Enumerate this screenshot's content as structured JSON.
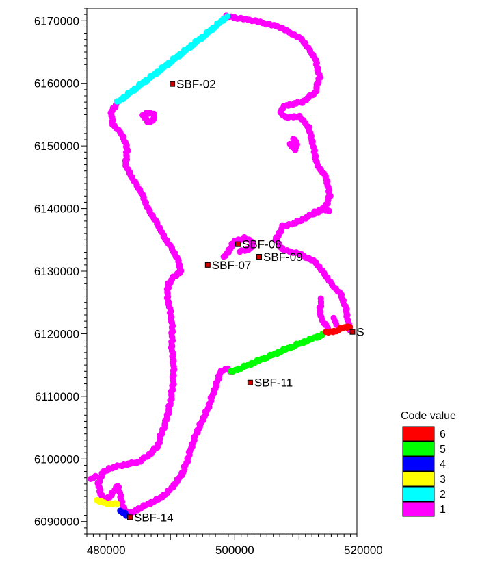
{
  "chart_data": {
    "type": "scatter",
    "xlim": [
      477000,
      519000
    ],
    "ylim": [
      6088000,
      6172000
    ],
    "x_ticks": [
      480000,
      500000,
      520000
    ],
    "x_tick_labels": [
      "480000",
      "500000",
      "520000"
    ],
    "y_ticks": [
      6090000,
      6100000,
      6110000,
      6120000,
      6130000,
      6140000,
      6150000,
      6160000,
      6170000
    ],
    "y_tick_labels": [
      "6090000",
      "6100000",
      "6110000",
      "6120000",
      "6130000",
      "6140000",
      "6150000",
      "6160000",
      "6170000"
    ],
    "grid": false,
    "legend": {
      "title": "Code value",
      "placement": "bottom-right",
      "entries": [
        {
          "label": "6",
          "color": "#ff0000"
        },
        {
          "label": "5",
          "color": "#00ff00"
        },
        {
          "label": "4",
          "color": "#0000ff"
        },
        {
          "label": "3",
          "color": "#ffff00"
        },
        {
          "label": "2",
          "color": "#00ffff"
        },
        {
          "label": "1",
          "color": "#ff00ff"
        }
      ]
    },
    "series": [
      {
        "code": 1,
        "color": "#ff00ff",
        "paths": [
          [
            [
              498800,
              6170700
            ],
            [
              503000,
              6170000
            ],
            [
              507000,
              6169000
            ],
            [
              510500,
              6167000
            ],
            [
              512500,
              6164000
            ],
            [
              513200,
              6161000
            ],
            [
              512500,
              6158500
            ],
            [
              510500,
              6157000
            ],
            [
              508000,
              6156500
            ],
            [
              507000,
              6155500
            ],
            [
              508000,
              6154500
            ],
            [
              510000,
              6154800
            ],
            [
              511500,
              6153000
            ],
            [
              512200,
              6150000
            ],
            [
              512800,
              6147000
            ],
            [
              514200,
              6145000
            ],
            [
              514800,
              6142000
            ],
            [
              514000,
              6140000
            ],
            [
              511500,
              6138800
            ],
            [
              509500,
              6137700
            ],
            [
              507500,
              6137200
            ],
            [
              506400,
              6135000
            ],
            [
              507500,
              6133400
            ],
            [
              510000,
              6132800
            ],
            [
              512500,
              6131500
            ],
            [
              514000,
              6129500
            ],
            [
              515000,
              6128000
            ],
            [
              516500,
              6126300
            ],
            [
              517300,
              6124000
            ],
            [
              517600,
              6122000
            ],
            [
              517800,
              6120600
            ]
          ],
          [
            [
              481800,
              6157000
            ],
            [
              480800,
              6155500
            ],
            [
              481000,
              6153500
            ],
            [
              482500,
              6151800
            ],
            [
              483300,
              6149500
            ],
            [
              483000,
              6147000
            ],
            [
              484000,
              6145000
            ],
            [
              485500,
              6142500
            ],
            [
              486500,
              6140000
            ],
            [
              488000,
              6137500
            ],
            [
              489000,
              6135500
            ],
            [
              490300,
              6133500
            ],
            [
              491300,
              6131500
            ],
            [
              491600,
              6130000
            ],
            [
              490500,
              6129000
            ],
            [
              489700,
              6128000
            ],
            [
              489500,
              6126000
            ],
            [
              489900,
              6124000
            ],
            [
              490300,
              6121000
            ],
            [
              490200,
              6118000
            ],
            [
              490500,
              6115000
            ],
            [
              490400,
              6112000
            ],
            [
              490000,
              6109000
            ],
            [
              489300,
              6106000
            ],
            [
              488600,
              6104000
            ],
            [
              488000,
              6102000
            ],
            [
              486500,
              6100500
            ],
            [
              485000,
              6099500
            ],
            [
              482500,
              6099000
            ],
            [
              480500,
              6098500
            ],
            [
              479300,
              6097600
            ],
            [
              478800,
              6096000
            ],
            [
              479100,
              6094500
            ],
            [
              479800,
              6093400
            ],
            [
              480800,
              6094200
            ],
            [
              481800,
              6095800
            ],
            [
              482200,
              6094200
            ],
            [
              482500,
              6092800
            ],
            [
              482900,
              6091800
            ],
            [
              483700,
              6091200
            ],
            [
              484800,
              6091900
            ],
            [
              486500,
              6092800
            ],
            [
              488200,
              6093600
            ],
            [
              489700,
              6094800
            ],
            [
              491000,
              6096400
            ],
            [
              492000,
              6098000
            ],
            [
              492700,
              6100000
            ],
            [
              493300,
              6102000
            ],
            [
              494000,
              6104000
            ],
            [
              494900,
              6106000
            ],
            [
              495800,
              6108000
            ],
            [
              496500,
              6110000
            ],
            [
              497200,
              6112000
            ],
            [
              497700,
              6113800
            ],
            [
              498800,
              6114500
            ],
            [
              499500,
              6113900
            ]
          ],
          [
            [
              485800,
              6154800
            ],
            [
              486500,
              6153800
            ],
            [
              487500,
              6154200
            ],
            [
              487300,
              6155200
            ],
            [
              486200,
              6155300
            ]
          ],
          [
            [
              508700,
              6150200
            ],
            [
              509300,
              6149400
            ],
            [
              509700,
              6150500
            ],
            [
              509000,
              6151200
            ]
          ],
          [
            [
              498400,
              6132200
            ],
            [
              500000,
              6134800
            ],
            [
              501600,
              6135300
            ],
            [
              502800,
              6134600
            ],
            [
              502500,
              6133500
            ],
            [
              500800,
              6133200
            ]
          ],
          [
            [
              513500,
              6125500
            ],
            [
              513200,
              6123800
            ],
            [
              513500,
              6122300
            ],
            [
              514500,
              6121000
            ]
          ],
          [
            [
              515500,
              6122400
            ],
            [
              515700,
              6121500
            ]
          ],
          [
            [
              512500,
              6139400
            ],
            [
              513800,
              6140000
            ],
            [
              514800,
              6139500
            ]
          ],
          [
            [
              477700,
              6096700
            ],
            [
              478300,
              6097200
            ]
          ]
        ]
      },
      {
        "code": 2,
        "color": "#00ffff",
        "paths": [
          [
            [
              481800,
              6157000
            ],
            [
              485000,
              6159500
            ],
            [
              488500,
              6162200
            ],
            [
              492000,
              6165000
            ],
            [
              495500,
              6167800
            ],
            [
              498800,
              6170700
            ]
          ]
        ]
      },
      {
        "code": 3,
        "color": "#ffff00",
        "paths": [
          [
            [
              478700,
              6093300
            ],
            [
              479800,
              6093000
            ],
            [
              480800,
              6092800
            ],
            [
              481600,
              6092900
            ]
          ]
        ]
      },
      {
        "code": 4,
        "color": "#0000ff",
        "paths": [
          [
            [
              482300,
              6091600
            ],
            [
              482900,
              6091300
            ],
            [
              483200,
              6090900
            ]
          ]
        ]
      },
      {
        "code": 5,
        "color": "#00ff00",
        "paths": [
          [
            [
              499500,
              6113900
            ],
            [
              503000,
              6115400
            ],
            [
              506500,
              6116900
            ],
            [
              510000,
              6118400
            ],
            [
              513800,
              6119900
            ]
          ]
        ]
      },
      {
        "code": 6,
        "color": "#ff0000",
        "paths": [
          [
            [
              514300,
              6120200
            ],
            [
              515500,
              6120400
            ],
            [
              516800,
              6120900
            ],
            [
              517900,
              6121200
            ]
          ]
        ]
      }
    ],
    "stations": [
      {
        "name": "SBF-02",
        "x": 490300,
        "y": 6159900
      },
      {
        "name": "SBF-07",
        "x": 495800,
        "y": 6131000
      },
      {
        "name": "SBF-08",
        "x": 500500,
        "y": 6134300
      },
      {
        "name": "SBF-09",
        "x": 503800,
        "y": 6132300
      },
      {
        "name": "SBF-11",
        "x": 502400,
        "y": 6112200
      },
      {
        "name": "SBF-14",
        "x": 483700,
        "y": 6090700
      },
      {
        "name": "S",
        "x": 518300,
        "y": 6120300
      }
    ]
  }
}
